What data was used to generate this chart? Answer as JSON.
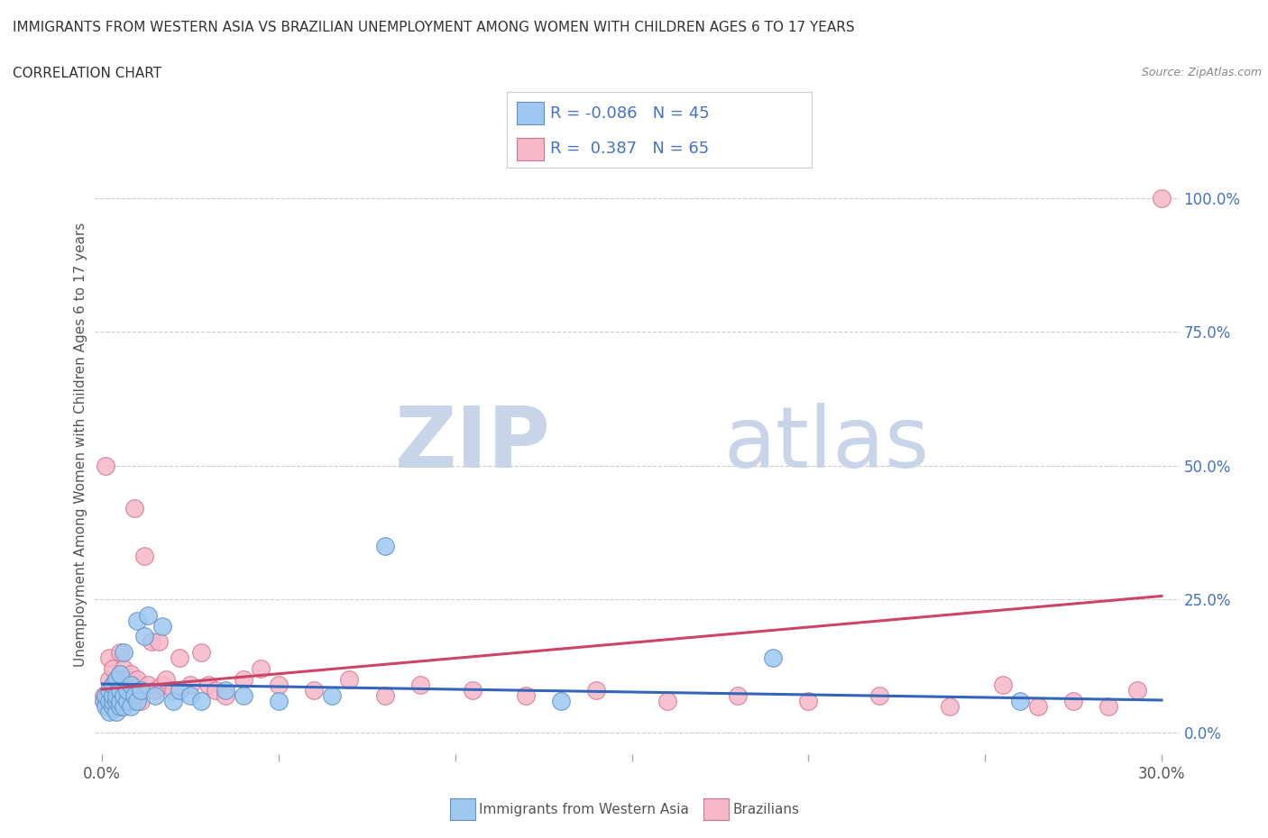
{
  "title": "IMMIGRANTS FROM WESTERN ASIA VS BRAZILIAN UNEMPLOYMENT AMONG WOMEN WITH CHILDREN AGES 6 TO 17 YEARS",
  "subtitle": "CORRELATION CHART",
  "source": "Source: ZipAtlas.com",
  "ylabel": "Unemployment Among Women with Children Ages 6 to 17 years",
  "xlim": [
    -0.002,
    0.305
  ],
  "ylim": [
    -0.04,
    1.12
  ],
  "x_ticks": [
    0.0,
    0.05,
    0.1,
    0.15,
    0.2,
    0.25,
    0.3
  ],
  "y_ticks_right": [
    0.0,
    0.25,
    0.5,
    0.75,
    1.0
  ],
  "y_tick_labels_right": [
    "0.0%",
    "25.0%",
    "50.0%",
    "75.0%",
    "100.0%"
  ],
  "grid_color": "#cccccc",
  "background_color": "#ffffff",
  "blue_color": "#9EC8F0",
  "pink_color": "#F5B8C8",
  "blue_edge": "#6090C8",
  "pink_edge": "#D87090",
  "trend_blue": "#3366BB",
  "trend_pink": "#CC4466",
  "R_blue": -0.086,
  "N_blue": 45,
  "R_pink": 0.387,
  "N_pink": 65,
  "legend_text_color": "#4472C4",
  "watermark_zip": "ZIP",
  "watermark_atlas": "atlas",
  "watermark_color": "#C8D4E8",
  "blue_scatter_x": [
    0.0005,
    0.001,
    0.001,
    0.002,
    0.002,
    0.002,
    0.003,
    0.003,
    0.003,
    0.003,
    0.004,
    0.004,
    0.004,
    0.004,
    0.005,
    0.005,
    0.005,
    0.005,
    0.006,
    0.006,
    0.006,
    0.007,
    0.007,
    0.008,
    0.008,
    0.009,
    0.01,
    0.01,
    0.011,
    0.012,
    0.013,
    0.015,
    0.017,
    0.02,
    0.022,
    0.025,
    0.028,
    0.035,
    0.04,
    0.05,
    0.065,
    0.08,
    0.13,
    0.19,
    0.26
  ],
  "blue_scatter_y": [
    0.06,
    0.05,
    0.07,
    0.04,
    0.06,
    0.08,
    0.05,
    0.06,
    0.07,
    0.09,
    0.04,
    0.06,
    0.07,
    0.1,
    0.05,
    0.06,
    0.08,
    0.11,
    0.05,
    0.07,
    0.15,
    0.06,
    0.08,
    0.05,
    0.09,
    0.07,
    0.06,
    0.21,
    0.08,
    0.18,
    0.22,
    0.07,
    0.2,
    0.06,
    0.08,
    0.07,
    0.06,
    0.08,
    0.07,
    0.06,
    0.07,
    0.35,
    0.06,
    0.14,
    0.06
  ],
  "pink_scatter_x": [
    0.0005,
    0.001,
    0.001,
    0.002,
    0.002,
    0.002,
    0.003,
    0.003,
    0.003,
    0.004,
    0.004,
    0.004,
    0.005,
    0.005,
    0.005,
    0.005,
    0.006,
    0.006,
    0.006,
    0.007,
    0.007,
    0.007,
    0.008,
    0.008,
    0.008,
    0.009,
    0.009,
    0.01,
    0.01,
    0.011,
    0.012,
    0.013,
    0.014,
    0.015,
    0.016,
    0.017,
    0.018,
    0.02,
    0.022,
    0.025,
    0.028,
    0.03,
    0.032,
    0.035,
    0.04,
    0.045,
    0.05,
    0.06,
    0.07,
    0.08,
    0.09,
    0.105,
    0.12,
    0.14,
    0.16,
    0.18,
    0.2,
    0.22,
    0.24,
    0.255,
    0.265,
    0.275,
    0.285,
    0.293,
    0.3
  ],
  "pink_scatter_y": [
    0.07,
    0.06,
    0.5,
    0.08,
    0.1,
    0.14,
    0.06,
    0.09,
    0.12,
    0.06,
    0.08,
    0.1,
    0.05,
    0.08,
    0.11,
    0.15,
    0.06,
    0.09,
    0.12,
    0.06,
    0.08,
    0.1,
    0.06,
    0.09,
    0.11,
    0.06,
    0.42,
    0.07,
    0.1,
    0.06,
    0.33,
    0.09,
    0.17,
    0.08,
    0.17,
    0.09,
    0.1,
    0.08,
    0.14,
    0.09,
    0.15,
    0.09,
    0.08,
    0.07,
    0.1,
    0.12,
    0.09,
    0.08,
    0.1,
    0.07,
    0.09,
    0.08,
    0.07,
    0.08,
    0.06,
    0.07,
    0.06,
    0.07,
    0.05,
    0.09,
    0.05,
    0.06,
    0.05,
    0.08,
    1.0
  ]
}
